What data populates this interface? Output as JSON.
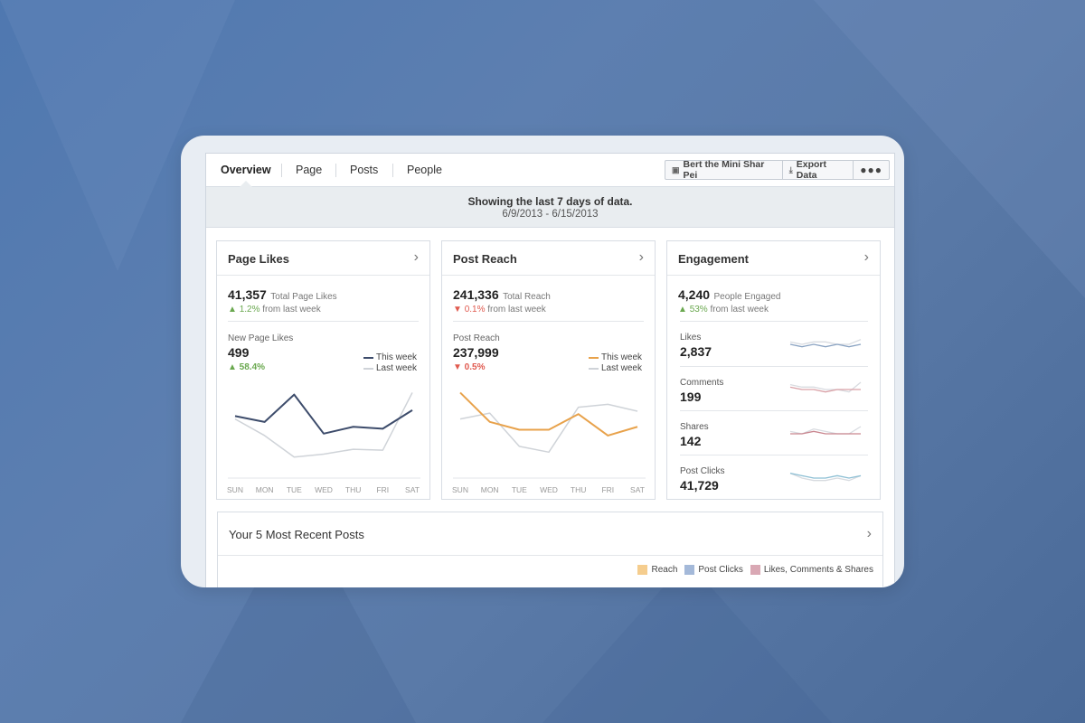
{
  "colors": {
    "this_week_likes": "#3d4c6b",
    "this_week_reach": "#e8a24b",
    "last_week": "#cfd3d8",
    "up": "#6aa84f",
    "down": "#e05a4f"
  },
  "nav": {
    "tabs": [
      {
        "label": "Overview",
        "active": true
      },
      {
        "label": "Page",
        "active": false
      },
      {
        "label": "Posts",
        "active": false
      },
      {
        "label": "People",
        "active": false
      }
    ],
    "page_button": {
      "label": "Bert the Mini Shar Pei",
      "icon": "page-icon"
    },
    "export_button": {
      "label": "Export Data",
      "icon": "download-icon"
    },
    "more_button": {
      "label": "●●●",
      "icon": "more-icon"
    }
  },
  "banner": {
    "title": "Showing the last 7 days of data.",
    "dates": "6/9/2013 - 6/15/2013"
  },
  "page_likes": {
    "title": "Page Likes",
    "total": "41,357",
    "total_label": "Total Page Likes",
    "change_arrow": "▲",
    "change": "1.2%",
    "change_suffix": "from last week",
    "sub_label": "New Page Likes",
    "sub_value": "499",
    "sub_change": "▲ 58.4%",
    "legend_this": "This week",
    "legend_last": "Last week"
  },
  "post_reach": {
    "title": "Post Reach",
    "total": "241,336",
    "total_label": "Total Reach",
    "change_arrow": "▼",
    "change": "0.1%",
    "change_suffix": "from last week",
    "sub_label": "Post Reach",
    "sub_value": "237,999",
    "sub_change": "▼ 0.5%",
    "legend_this": "This week",
    "legend_last": "Last week"
  },
  "engagement": {
    "title": "Engagement",
    "total": "4,240",
    "total_label": "People Engaged",
    "change_arrow": "▲",
    "change": "53%",
    "change_suffix": "from last week",
    "rows": [
      {
        "label": "Likes",
        "value": "2,837",
        "color": "#8aa3c2",
        "this": [
          3,
          2,
          3,
          2,
          3,
          2,
          3
        ],
        "last": [
          4,
          3,
          4,
          4,
          3,
          3,
          5
        ]
      },
      {
        "label": "Comments",
        "value": "199",
        "color": "#d9a0a6",
        "this": [
          4,
          3,
          3,
          2,
          3,
          3,
          3
        ],
        "last": [
          5,
          4,
          4,
          3,
          3,
          2,
          6
        ]
      },
      {
        "label": "Shares",
        "value": "142",
        "color": "#c9868f",
        "this": [
          3,
          3,
          4,
          3,
          3,
          3,
          3
        ],
        "last": [
          4,
          3,
          5,
          4,
          3,
          3,
          6
        ]
      },
      {
        "label": "Post Clicks",
        "value": "41,729",
        "color": "#8cbfd4",
        "this": [
          5,
          4,
          3,
          3,
          4,
          3,
          4
        ],
        "last": [
          5,
          3,
          2,
          2,
          3,
          2,
          4
        ]
      }
    ]
  },
  "days": [
    "SUN",
    "MON",
    "TUE",
    "WED",
    "THU",
    "FRI",
    "SAT"
  ],
  "chart_data": [
    {
      "type": "line",
      "x": [
        "SUN",
        "MON",
        "TUE",
        "WED",
        "THU",
        "FRI",
        "SAT"
      ],
      "series": [
        {
          "name": "This week",
          "values": [
            58,
            52,
            80,
            40,
            47,
            45,
            64
          ]
        },
        {
          "name": "Last week",
          "values": [
            55,
            38,
            16,
            19,
            24,
            23,
            82
          ]
        }
      ],
      "ylim": [
        0,
        100
      ]
    },
    {
      "type": "line",
      "x": [
        "SUN",
        "MON",
        "TUE",
        "WED",
        "THU",
        "FRI",
        "SAT"
      ],
      "series": [
        {
          "name": "This week",
          "values": [
            82,
            52,
            44,
            44,
            60,
            38,
            47
          ]
        },
        {
          "name": "Last week",
          "values": [
            55,
            61,
            27,
            21,
            67,
            70,
            63
          ]
        }
      ],
      "ylim": [
        0,
        100
      ]
    }
  ],
  "recent": {
    "title": "Your 5 Most Recent Posts",
    "legend": [
      {
        "label": "Reach",
        "color": "#f5cd8e"
      },
      {
        "label": "Post Clicks",
        "color": "#a4b9d9"
      },
      {
        "label": "Likes, Comments & Shares",
        "color": "#d9a8b4"
      }
    ]
  }
}
